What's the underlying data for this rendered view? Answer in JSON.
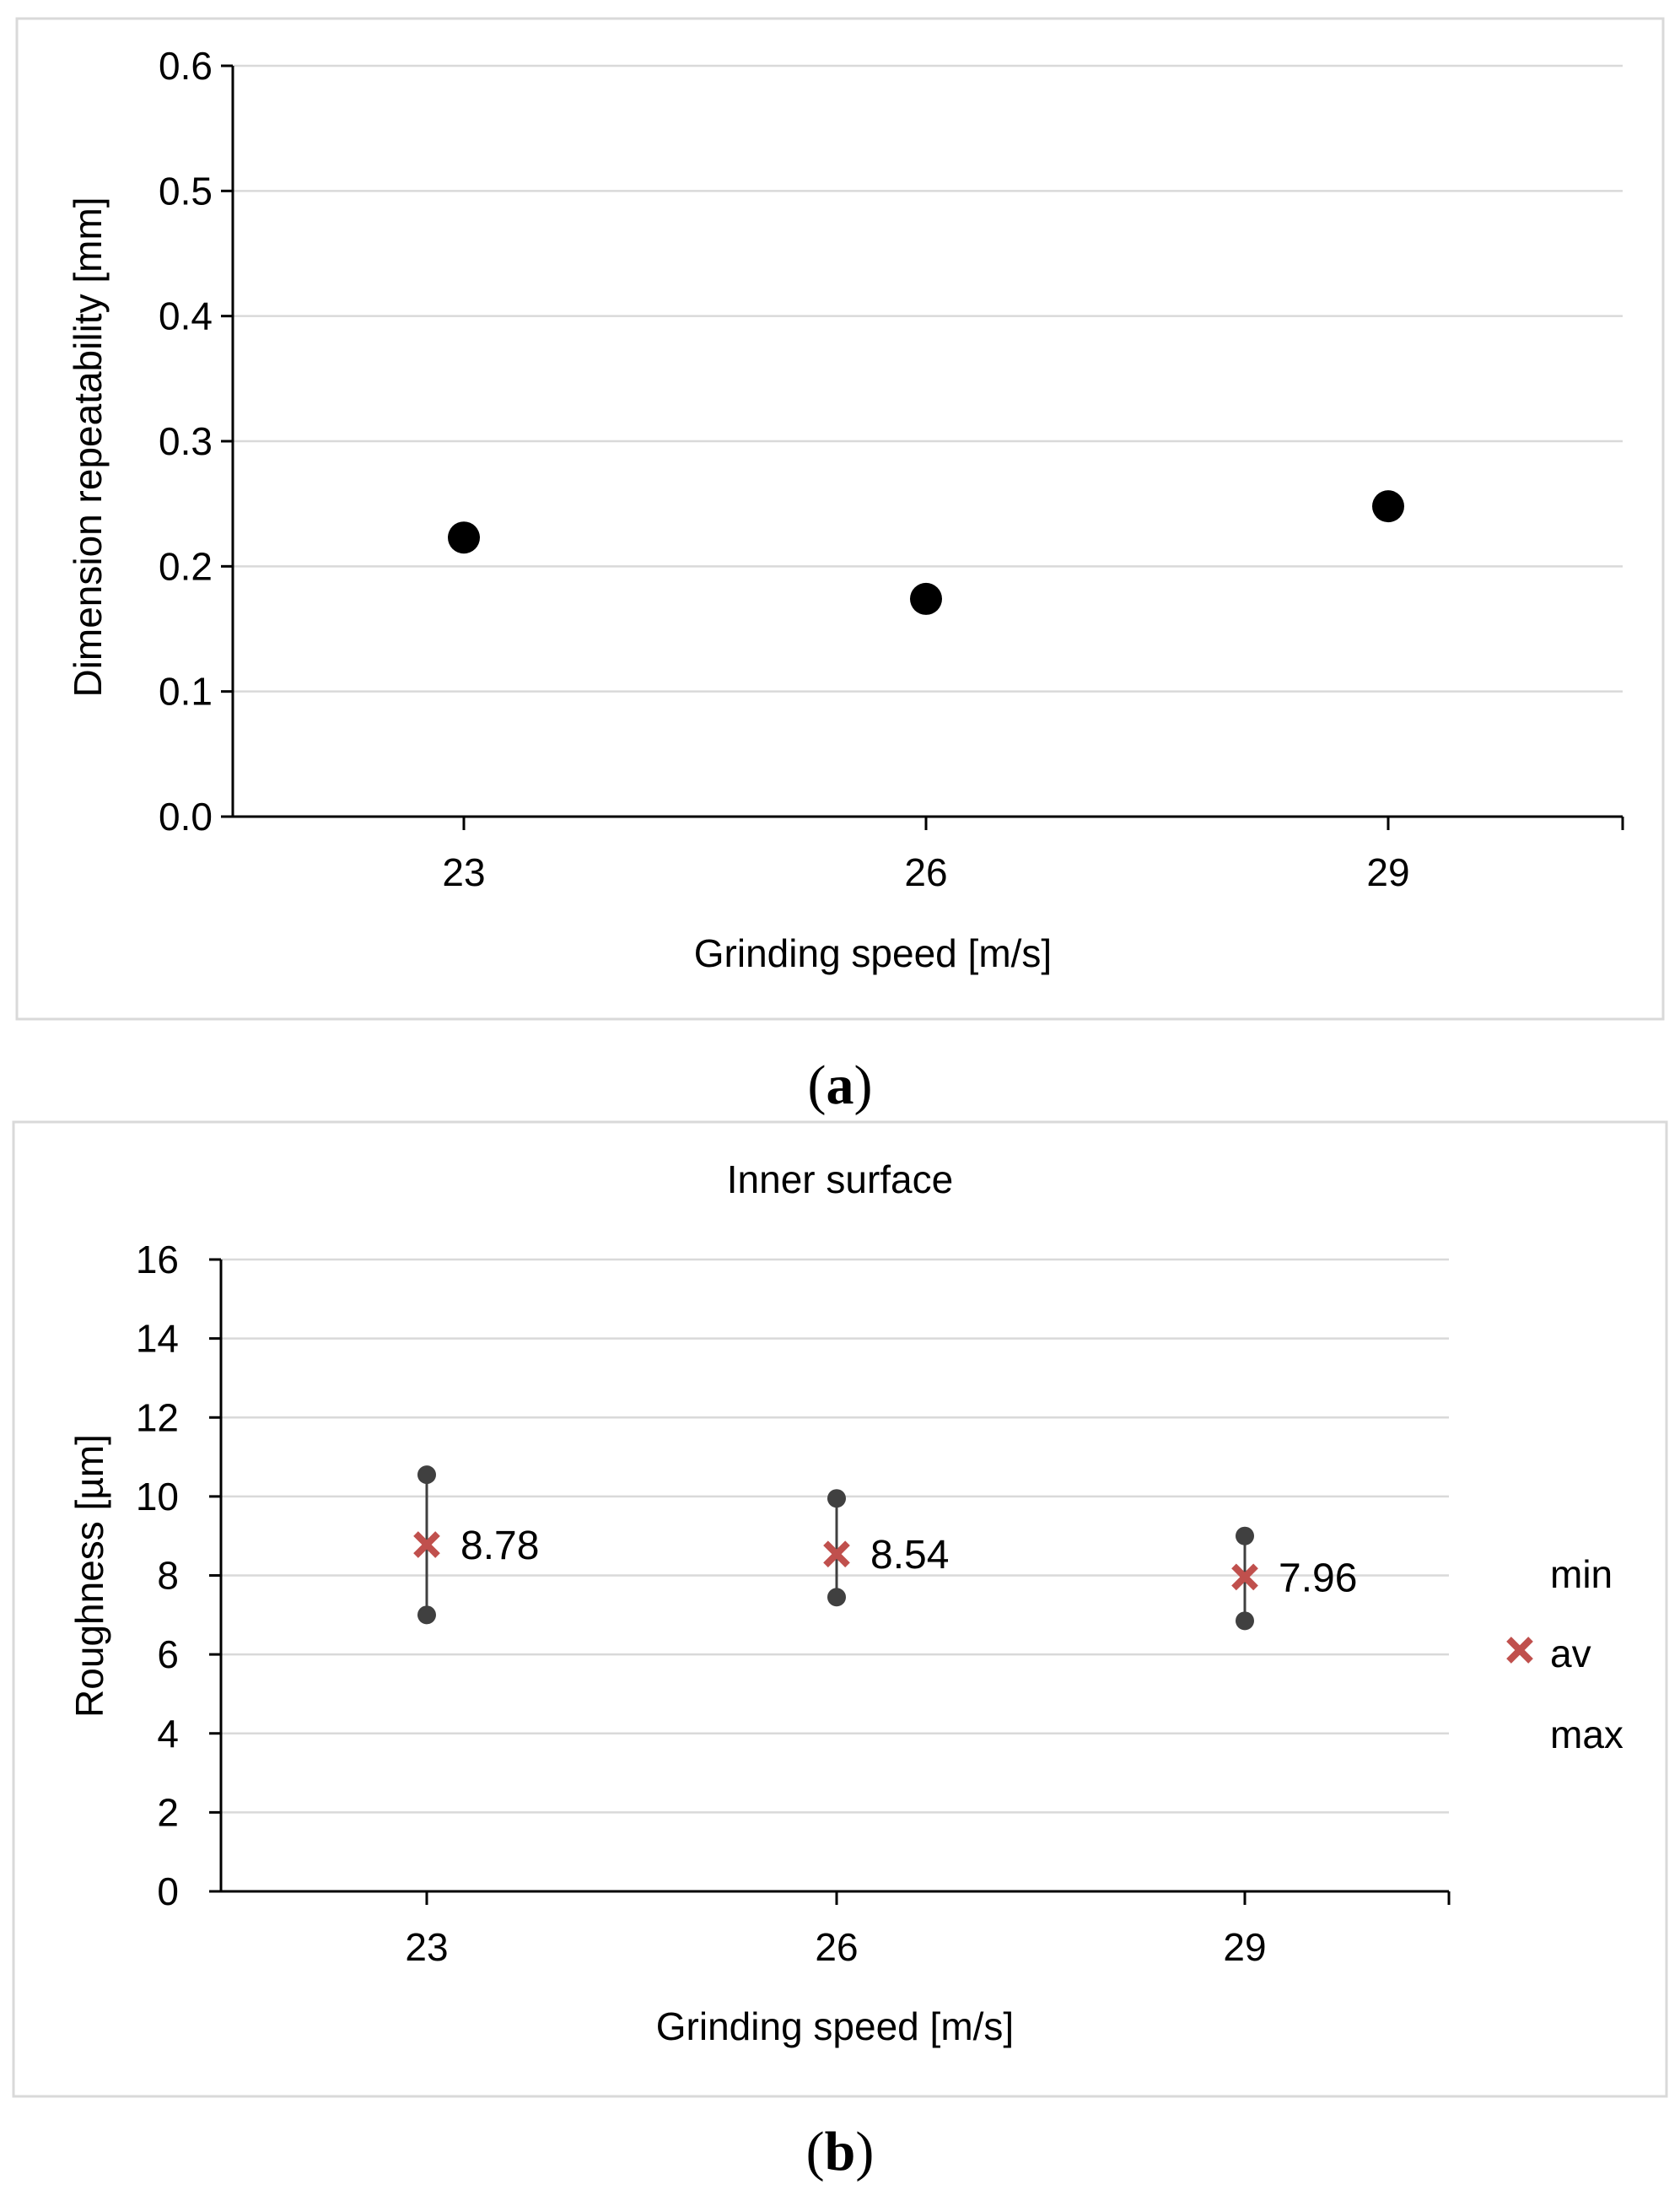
{
  "chart_data": [
    {
      "id": "a",
      "type": "scatter",
      "title": "",
      "xlabel": "Grinding speed [m/s]",
      "ylabel": "Dimension repeatability [mm]",
      "categories": [
        "23",
        "26",
        "29"
      ],
      "values": [
        0.223,
        0.174,
        0.248
      ],
      "ylim": [
        0.0,
        0.6
      ],
      "yticks": [
        "0.0",
        "0.1",
        "0.2",
        "0.3",
        "0.4",
        "0.5",
        "0.6"
      ],
      "grid": true,
      "marker_color": "#000000"
    },
    {
      "id": "b",
      "type": "scatter",
      "title": "Inner surface",
      "xlabel": "Grinding speed [m/s]",
      "ylabel": "Roughness [µm]",
      "categories": [
        "23",
        "26",
        "29"
      ],
      "series": [
        {
          "name": "min",
          "values": [
            7.0,
            7.45,
            6.85
          ]
        },
        {
          "name": "av",
          "values": [
            8.78,
            8.54,
            7.96
          ]
        },
        {
          "name": "max",
          "values": [
            10.55,
            9.95,
            9.0
          ]
        }
      ],
      "av_labels": [
        "8.78",
        "8.54",
        "7.96"
      ],
      "ylim": [
        0,
        16
      ],
      "yticks": [
        "0",
        "2",
        "4",
        "6",
        "8",
        "10",
        "12",
        "14",
        "16"
      ],
      "grid": true,
      "legend": {
        "placement": "right",
        "items": [
          "min",
          "av",
          "max"
        ]
      },
      "av_color": "#c0504d",
      "range_color": "#404040"
    }
  ],
  "captions": {
    "a": {
      "open": "(",
      "letter": "a",
      "close": ")"
    },
    "b": {
      "open": "(",
      "letter": "b",
      "close": ")"
    }
  }
}
